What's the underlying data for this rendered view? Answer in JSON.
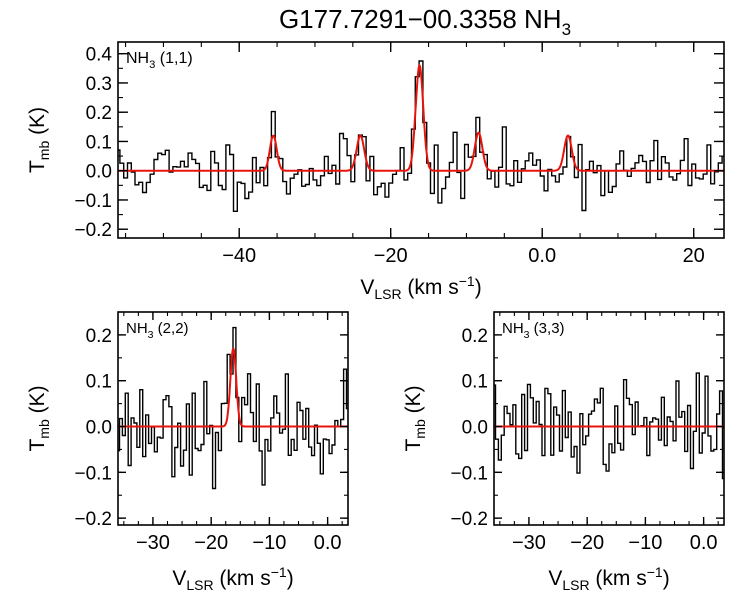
{
  "title_main": "G177.7291−00.3358 NH",
  "title_sub": "3",
  "axis_label_y_main": "T",
  "axis_label_y_sub": "mb",
  "axis_label_y_unit": " (K)",
  "axis_label_x_main": "V",
  "axis_label_x_sub": "LSR",
  "axis_label_x_unit": " (km s",
  "axis_label_x_sup": "−1",
  "axis_label_x_close": ")",
  "colors": {
    "data": "#000000",
    "fit": "#e8140c",
    "axes": "#000000"
  },
  "chart_data": [
    {
      "type": "line",
      "panel": "top",
      "annotation": {
        "main": "NH",
        "sub": "3",
        "rest": " (1,1)"
      },
      "xlim": [
        -56,
        24
      ],
      "ylim": [
        -0.23,
        0.44
      ],
      "xticks": [
        -40,
        -20,
        0,
        20
      ],
      "yticks": [
        -0.2,
        -0.1,
        0.0,
        0.1,
        0.2,
        0.3,
        0.4
      ],
      "x_step": 0.5,
      "noise_rms": 0.055,
      "seed": 11,
      "fit_components": [
        {
          "center": -35.5,
          "amplitude": 0.12,
          "sigma": 0.45
        },
        {
          "center": -24.0,
          "amplitude": 0.12,
          "sigma": 0.5
        },
        {
          "center": -16.2,
          "amplitude": 0.36,
          "sigma": 0.5
        },
        {
          "center": -8.4,
          "amplitude": 0.13,
          "sigma": 0.5
        },
        {
          "center": 3.4,
          "amplitude": 0.12,
          "sigma": 0.5
        }
      ]
    },
    {
      "type": "line",
      "panel": "bottom-left",
      "annotation": {
        "main": "NH",
        "sub": "3",
        "rest": " (2,2)"
      },
      "xlim": [
        -36,
        3.5
      ],
      "ylim": [
        -0.215,
        0.25
      ],
      "xticks": [
        -30,
        -20,
        -10,
        0
      ],
      "yticks": [
        -0.2,
        -0.1,
        0.0,
        0.1,
        0.2
      ],
      "x_step": 0.5,
      "noise_rms": 0.05,
      "seed": 23,
      "fit_components": [
        {
          "center": -16.2,
          "amplitude": 0.17,
          "sigma": 0.5
        }
      ]
    },
    {
      "type": "line",
      "panel": "bottom-right",
      "annotation": {
        "main": "NH",
        "sub": "3",
        "rest": " (3,3)"
      },
      "xlim": [
        -36,
        3.5
      ],
      "ylim": [
        -0.215,
        0.25
      ],
      "xticks": [
        -30,
        -20,
        -10,
        0
      ],
      "yticks": [
        -0.2,
        -0.1,
        0.0,
        0.1,
        0.2
      ],
      "x_step": 0.5,
      "noise_rms": 0.048,
      "seed": 37,
      "fit_components": []
    }
  ]
}
